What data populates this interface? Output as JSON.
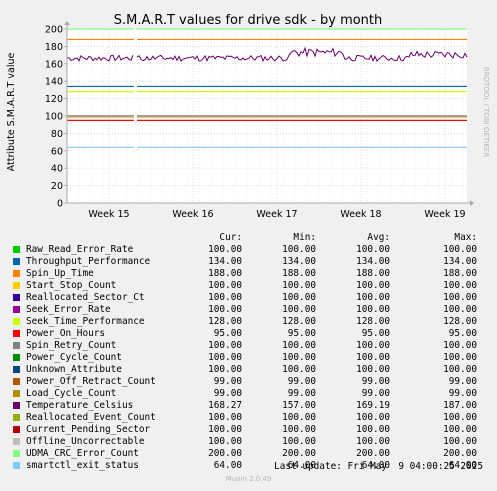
{
  "chart_data": {
    "type": "line",
    "title": "S.M.A.R.T values for drive sdk - by month",
    "ylabel": "Attribute S.M.A.R.T value",
    "side_label": "RRDTOOL / TOBI OETIKER",
    "ylim": [
      0,
      200
    ],
    "yticks": [
      0,
      20,
      40,
      60,
      80,
      100,
      120,
      140,
      160,
      180,
      200
    ],
    "xticks": [
      "Week 15",
      "Week 16",
      "Week 17",
      "Week 18",
      "Week 19"
    ],
    "grid": true,
    "columns": [
      "Cur:",
      "Min:",
      "Avg:",
      "Max:"
    ],
    "series": [
      {
        "name": "Raw_Read_Error_Rate",
        "color": "#00cc00",
        "cur": "100.00",
        "min": "100.00",
        "avg": "100.00",
        "max": "100.00",
        "value": 100
      },
      {
        "name": "Throughput_Performance",
        "color": "#0066b3",
        "cur": "134.00",
        "min": "134.00",
        "avg": "134.00",
        "max": "134.00",
        "value": 134
      },
      {
        "name": "Spin_Up_Time",
        "color": "#ff8000",
        "cur": "188.00",
        "min": "188.00",
        "avg": "188.00",
        "max": "188.00",
        "value": 188
      },
      {
        "name": "Start_Stop_Count",
        "color": "#ffcc00",
        "cur": "100.00",
        "min": "100.00",
        "avg": "100.00",
        "max": "100.00",
        "value": 100
      },
      {
        "name": "Reallocated_Sector_Ct",
        "color": "#330099",
        "cur": "100.00",
        "min": "100.00",
        "avg": "100.00",
        "max": "100.00",
        "value": 100
      },
      {
        "name": "Seek_Error_Rate",
        "color": "#990099",
        "cur": "100.00",
        "min": "100.00",
        "avg": "100.00",
        "max": "100.00",
        "value": 100
      },
      {
        "name": "Seek_Time_Performance",
        "color": "#ccff00",
        "cur": "128.00",
        "min": "128.00",
        "avg": "128.00",
        "max": "128.00",
        "value": 128
      },
      {
        "name": "Power_On_Hours",
        "color": "#ff0000",
        "cur": "95.00",
        "min": "95.00",
        "avg": "95.00",
        "max": "95.00",
        "value": 95
      },
      {
        "name": "Spin_Retry_Count",
        "color": "#808080",
        "cur": "100.00",
        "min": "100.00",
        "avg": "100.00",
        "max": "100.00",
        "value": 100
      },
      {
        "name": "Power_Cycle_Count",
        "color": "#008f00",
        "cur": "100.00",
        "min": "100.00",
        "avg": "100.00",
        "max": "100.00",
        "value": 100
      },
      {
        "name": "Unknown_Attribute",
        "color": "#00487d",
        "cur": "100.00",
        "min": "100.00",
        "avg": "100.00",
        "max": "100.00",
        "value": 100
      },
      {
        "name": "Power_Off_Retract_Count",
        "color": "#b35a00",
        "cur": "99.00",
        "min": "99.00",
        "avg": "99.00",
        "max": "99.00",
        "value": 99
      },
      {
        "name": "Load_Cycle_Count",
        "color": "#b38f00",
        "cur": "99.00",
        "min": "99.00",
        "avg": "99.00",
        "max": "99.00",
        "value": 99
      },
      {
        "name": "Temperature_Celsius",
        "color": "#6b006b",
        "cur": "168.27",
        "min": "157.00",
        "avg": "169.19",
        "max": "187.00",
        "value": 169
      },
      {
        "name": "Reallocated_Event_Count",
        "color": "#8fb300",
        "cur": "100.00",
        "min": "100.00",
        "avg": "100.00",
        "max": "100.00",
        "value": 100
      },
      {
        "name": "Current_Pending_Sector",
        "color": "#b30000",
        "cur": "100.00",
        "min": "100.00",
        "avg": "100.00",
        "max": "100.00",
        "value": 100
      },
      {
        "name": "Offline_Uncorrectable",
        "color": "#bebebe",
        "cur": "100.00",
        "min": "100.00",
        "avg": "100.00",
        "max": "100.00",
        "value": 100
      },
      {
        "name": "UDMA_CRC_Error_Count",
        "color": "#80ff80",
        "cur": "200.00",
        "min": "200.00",
        "avg": "200.00",
        "max": "200.00",
        "value": 200
      },
      {
        "name": "smartctl_exit_status",
        "color": "#80c9ff",
        "cur": "64.00",
        "min": "64.00",
        "avg": "64.00",
        "max": "64.00",
        "value": 64
      }
    ],
    "last_update": "Last update: Fri May  9 04:00:25 2025",
    "footer": "Munin 2.0.49"
  }
}
